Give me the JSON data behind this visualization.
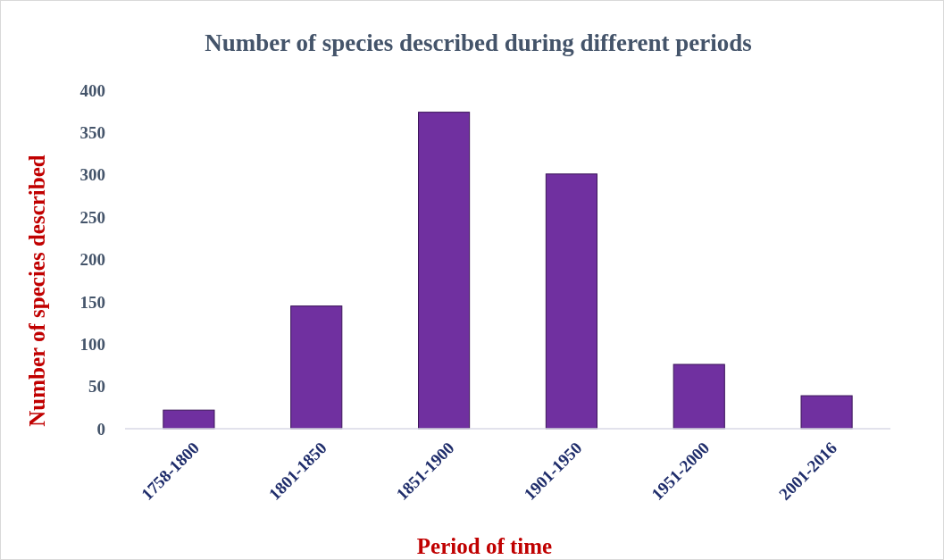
{
  "chart_data": {
    "type": "bar",
    "title": "Number of species described during different periods",
    "xlabel": "Period of time",
    "ylabel": "Number of species described",
    "categories": [
      "1758-1800",
      "1801-1850",
      "1851-1900",
      "1901-1950",
      "1951-2000",
      "2001-2016"
    ],
    "values": [
      22,
      145,
      374,
      301,
      76,
      39
    ],
    "color": "#7030a0",
    "ylim": [
      0,
      400
    ],
    "yticks": [
      0,
      50,
      100,
      150,
      200,
      250,
      300,
      350,
      400
    ],
    "grid": false
  }
}
